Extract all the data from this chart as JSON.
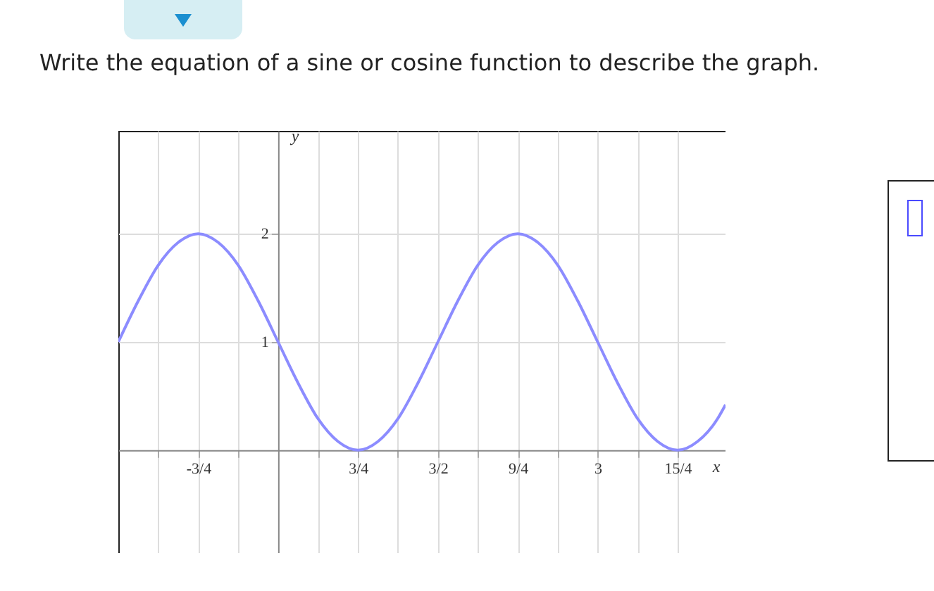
{
  "chart_data": {
    "type": "line",
    "title": "Write the equation of a sine or cosine function to describe the graph.",
    "xlabel": "x",
    "ylabel": "y",
    "x": [
      -1.5,
      -1.3125,
      -1.125,
      -0.9375,
      -0.75,
      -0.5625,
      -0.375,
      -0.1875,
      0,
      0.1875,
      0.375,
      0.5625,
      0.75,
      0.9375,
      1.125,
      1.3125,
      1.5,
      1.6875,
      1.875,
      2.0625,
      2.25,
      2.4375,
      2.625,
      2.8125,
      3,
      3.1875,
      3.375,
      3.5625,
      3.75,
      3.9375,
      4.125,
      4.2
    ],
    "series": [
      {
        "color": "#8c8cff",
        "values": [
          1,
          1.38,
          1.71,
          1.92,
          2,
          1.92,
          1.71,
          1.38,
          1,
          0.62,
          0.29,
          0.08,
          0,
          0.08,
          0.29,
          0.62,
          1,
          1.38,
          1.71,
          1.92,
          2,
          1.92,
          1.71,
          1.38,
          1,
          0.62,
          0.29,
          0.08,
          0,
          0.08,
          0.29,
          0.42
        ]
      }
    ],
    "xlim": [
      -1.5,
      4.2
    ],
    "ylim": [
      -0.95,
      2.95
    ],
    "xticks": [
      {
        "value": -1.125,
        "label": null
      },
      {
        "value": -0.75,
        "label": "-3/4"
      },
      {
        "value": -0.375,
        "label": null
      },
      {
        "value": 0.375,
        "label": null
      },
      {
        "value": 0.75,
        "label": "3/4"
      },
      {
        "value": 1.125,
        "label": null
      },
      {
        "value": 1.5,
        "label": "3/2"
      },
      {
        "value": 1.875,
        "label": null
      },
      {
        "value": 2.25,
        "label": "9/4"
      },
      {
        "value": 2.625,
        "label": null
      },
      {
        "value": 3,
        "label": "3"
      },
      {
        "value": 3.375,
        "label": null
      },
      {
        "value": 3.75,
        "label": "15/4"
      }
    ],
    "yticks": [
      1,
      2
    ],
    "grid": true,
    "marker": "none"
  }
}
